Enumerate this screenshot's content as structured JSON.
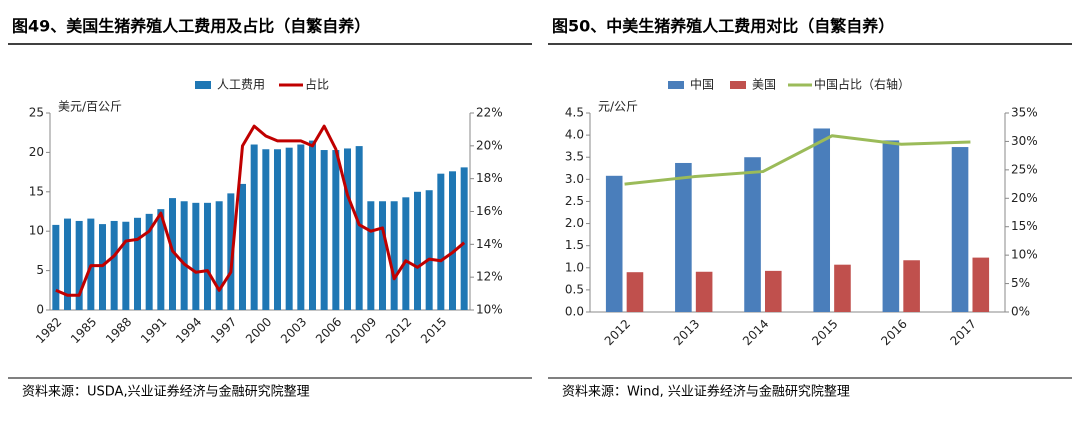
{
  "chart_data": [
    {
      "type": "combo",
      "title": "图49、美国生猪养殖人工费用及占比（自繁自养）",
      "source": "资料来源：USDA,兴业证券经济与金融研究院整理",
      "ylabel": "美元/百公斤",
      "legend": "top",
      "categories": [
        "1982",
        null,
        null,
        "1985",
        null,
        null,
        "1988",
        null,
        null,
        "1991",
        null,
        null,
        "1994",
        null,
        null,
        "1997",
        null,
        null,
        "2000",
        null,
        null,
        "2003",
        null,
        null,
        "2006",
        null,
        null,
        "2009",
        null,
        null,
        "2012",
        null,
        null,
        "2015",
        null,
        null
      ],
      "series": [
        {
          "name": "人工费用",
          "color": "#1f77b4",
          "mark": "bar",
          "axis": "y",
          "values": [
            10.8,
            11.6,
            11.3,
            11.6,
            10.9,
            11.3,
            11.2,
            11.7,
            12.2,
            12.8,
            14.2,
            13.8,
            13.6,
            13.6,
            13.8,
            14.8,
            16.0,
            21.0,
            20.4,
            20.4,
            20.6,
            21.0,
            21.5,
            20.3,
            20.3,
            20.5,
            20.8,
            13.8,
            13.8,
            13.8,
            14.3,
            15.0,
            15.2,
            17.3,
            17.6,
            18.1
          ]
        },
        {
          "name": "占比",
          "color": "#c00000",
          "mark": "line",
          "axis": "y2",
          "values": [
            11.2,
            10.9,
            10.9,
            12.7,
            12.7,
            13.3,
            14.2,
            14.3,
            14.8,
            15.9,
            13.6,
            12.8,
            12.3,
            12.4,
            11.2,
            12.3,
            20.0,
            21.2,
            20.6,
            20.3,
            20.3,
            20.3,
            20.0,
            21.2,
            19.8,
            17.0,
            15.2,
            14.8,
            15.0,
            11.9,
            13.0,
            12.6,
            13.1,
            13.0,
            13.5,
            14.1
          ]
        }
      ],
      "ylim": [
        0,
        25
      ],
      "yticks": [
        0,
        5,
        10,
        15,
        20,
        25
      ],
      "y2lim": [
        10,
        22
      ],
      "y2ticks": [
        {
          "value": 10,
          "label": "10%"
        },
        {
          "value": 12,
          "label": "12%"
        },
        {
          "value": 14,
          "label": "14%"
        },
        {
          "value": 16,
          "label": "16%"
        },
        {
          "value": 18,
          "label": "18%"
        },
        {
          "value": 20,
          "label": "20%"
        },
        {
          "value": 22,
          "label": "22%"
        }
      ]
    },
    {
      "type": "combo",
      "title": "图50、中美生猪养殖人工费用对比（自繁自养）",
      "source": "资料来源：Wind, 兴业证券经济与金融研究院整理",
      "ylabel": "元/公斤",
      "legend": "top",
      "categories": [
        "2012",
        "2013",
        "2014",
        "2015",
        "2016",
        "2017"
      ],
      "series": [
        {
          "name": "中国",
          "color": "#4a7ebb",
          "mark": "bar",
          "axis": "y",
          "values": [
            3.08,
            3.37,
            3.5,
            4.15,
            3.88,
            3.73
          ]
        },
        {
          "name": "美国",
          "color": "#c0504d",
          "mark": "bar",
          "axis": "y",
          "values": [
            0.9,
            0.91,
            0.93,
            1.07,
            1.17,
            1.23
          ]
        },
        {
          "name": "中国占比（右轴）",
          "color": "#9bbb59",
          "mark": "line",
          "axis": "y2",
          "values": [
            22.5,
            23.8,
            24.7,
            31.0,
            29.5,
            29.9
          ]
        }
      ],
      "ylim": [
        0,
        4.5
      ],
      "yticks": [
        {
          "value": 0,
          "label": "0.0"
        },
        {
          "value": 0.5,
          "label": "0.5"
        },
        {
          "value": 1,
          "label": "1.0"
        },
        {
          "value": 1.5,
          "label": "1.5"
        },
        {
          "value": 2,
          "label": "2.0"
        },
        {
          "value": 2.5,
          "label": "2.5"
        },
        {
          "value": 3,
          "label": "3.0"
        },
        {
          "value": 3.5,
          "label": "3.5"
        },
        {
          "value": 4,
          "label": "4.0"
        },
        {
          "value": 4.5,
          "label": "4.5"
        }
      ],
      "y2lim": [
        0,
        35
      ],
      "y2ticks": [
        {
          "value": 0,
          "label": "0%"
        },
        {
          "value": 5,
          "label": "5%"
        },
        {
          "value": 10,
          "label": "10%"
        },
        {
          "value": 15,
          "label": "15%"
        },
        {
          "value": 20,
          "label": "20%"
        },
        {
          "value": 25,
          "label": "25%"
        },
        {
          "value": 30,
          "label": "30%"
        },
        {
          "value": 35,
          "label": "35%"
        }
      ]
    }
  ]
}
